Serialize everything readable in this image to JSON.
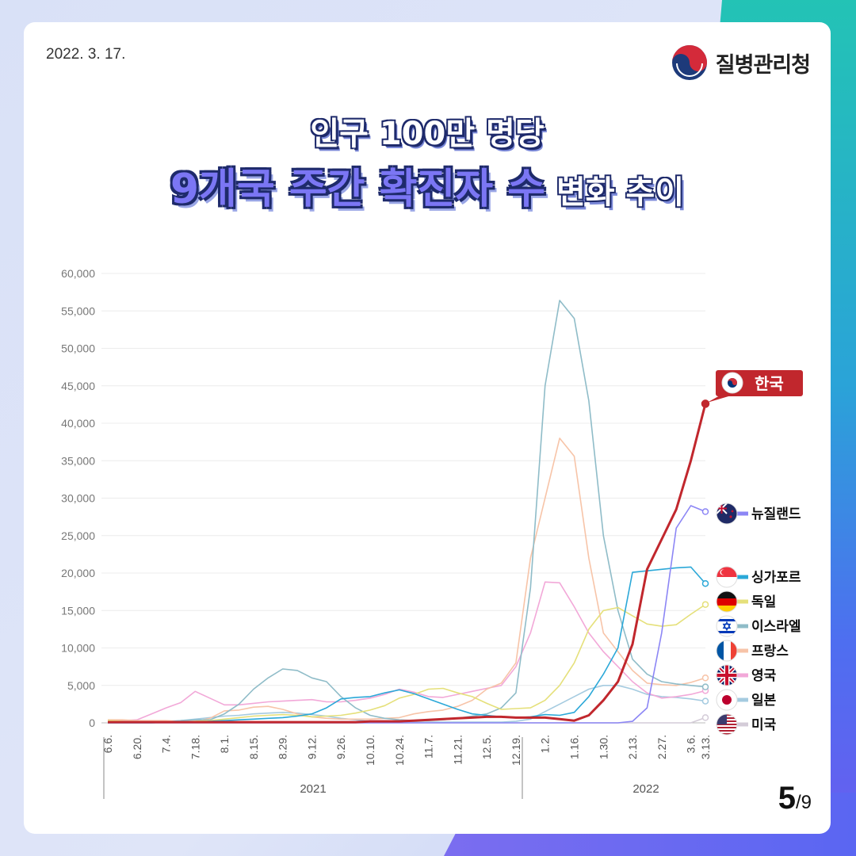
{
  "header": {
    "date": "2022. 3. 17.",
    "org_name": "질병관리청",
    "title_line1": "인구 100만 명당",
    "title_line2_big": "9개국 주간 확진자 수",
    "title_line2_small": " 변화 추이"
  },
  "page": {
    "current": "5",
    "total": "/9"
  },
  "colors": {
    "korea": "#c1272d",
    "new_zealand": "#8c86f5",
    "singapore": "#2ba8d8",
    "germany": "#e5e07a",
    "israel": "#8fbcc8",
    "france": "#f7c4a8",
    "uk": "#f2a8d8",
    "japan": "#a5cbe0",
    "usa": "#d4ccd8"
  },
  "chart_data": {
    "type": "line",
    "ylim": [
      0,
      60000
    ],
    "yticks": [
      "0",
      "5,000",
      "10,000",
      "15,000",
      "20,000",
      "25,000",
      "30,000",
      "35,000",
      "40,000",
      "45,000",
      "50,000",
      "55,000",
      "60,000"
    ],
    "categories": [
      "6.6.",
      "",
      "6.20.",
      "",
      "7.4.",
      "",
      "7.18.",
      "",
      "8.1.",
      "",
      "8.15.",
      "",
      "8.29.",
      "",
      "9.12.",
      "",
      "9.26.",
      "",
      "10.10.",
      "",
      "10.24.",
      "",
      "11.7.",
      "",
      "11.21.",
      "",
      "12.5.",
      "",
      "12.19.",
      "",
      "1.2.",
      "",
      "1.16.",
      "",
      "1.30.",
      "",
      "2.13.",
      "",
      "2.27.",
      "",
      "3.6.",
      "3.13."
    ],
    "tick_labels": [
      "6.6.",
      "6.20.",
      "7.4.",
      "7.18.",
      "8.1.",
      "8.15.",
      "8.29.",
      "9.12.",
      "9.26.",
      "10.10.",
      "10.24.",
      "11.7.",
      "11.21.",
      "12.5.",
      "12.19.",
      "1.2.",
      "1.16.",
      "1.30.",
      "2.13.",
      "2.27.",
      "3.6.",
      "3.13."
    ],
    "year_labels": [
      "2021",
      "2022"
    ],
    "series": [
      {
        "name": "미국",
        "key": "usa",
        "values": [
          0,
          0,
          0,
          0,
          0,
          0,
          0,
          0,
          0,
          0,
          0,
          0,
          0,
          0,
          0,
          0,
          0,
          0,
          0,
          0,
          0,
          0,
          0,
          0,
          0,
          0,
          0,
          0,
          0,
          0,
          0,
          0,
          0,
          0,
          0,
          0,
          0,
          0,
          0,
          0,
          0,
          700
        ]
      },
      {
        "name": "일본",
        "key": "japan",
        "values": [
          200,
          200,
          200,
          200,
          200,
          300,
          500,
          700,
          900,
          1000,
          1200,
          1300,
          1400,
          1300,
          1100,
          900,
          600,
          400,
          200,
          100,
          100,
          100,
          100,
          100,
          100,
          100,
          100,
          100,
          200,
          500,
          1500,
          2500,
          3500,
          4500,
          5000,
          5000,
          4500,
          3800,
          3500,
          3400,
          3200,
          2900
        ]
      },
      {
        "name": "영국",
        "key": "uk",
        "values": [
          300,
          300,
          400,
          1200,
          2000,
          2700,
          4200,
          3300,
          2400,
          2400,
          2600,
          2800,
          2900,
          3000,
          3100,
          2800,
          2800,
          3000,
          3300,
          3800,
          4500,
          4100,
          3500,
          3400,
          3800,
          4200,
          4600,
          5000,
          7500,
          12000,
          18800,
          18700,
          15500,
          12000,
          9500,
          7500,
          5500,
          4000,
          3300,
          3500,
          3800,
          4300
        ]
      },
      {
        "name": "프랑스",
        "key": "france",
        "values": [
          400,
          400,
          300,
          300,
          300,
          200,
          200,
          600,
          1600,
          1700,
          2100,
          2200,
          1800,
          1200,
          800,
          600,
          500,
          500,
          500,
          600,
          700,
          1200,
          1500,
          1700,
          2200,
          3000,
          4500,
          5300,
          8000,
          22000,
          30000,
          38000,
          35600,
          22000,
          12000,
          9500,
          7000,
          5300,
          5100,
          5000,
          5400,
          6000
        ]
      },
      {
        "name": "이스라엘",
        "key": "israel",
        "values": [
          0,
          0,
          0,
          0,
          100,
          300,
          400,
          400,
          1200,
          2500,
          4500,
          6000,
          7200,
          7000,
          6000,
          5500,
          3500,
          2000,
          1000,
          600,
          400,
          300,
          300,
          400,
          600,
          900,
          1200,
          2000,
          4000,
          18000,
          45000,
          56400,
          54000,
          43000,
          25000,
          15000,
          8500,
          6500,
          5500,
          5200,
          5000,
          4800
        ]
      },
      {
        "name": "독일",
        "key": "germany",
        "values": [
          300,
          200,
          100,
          100,
          100,
          100,
          200,
          300,
          500,
          700,
          900,
          1000,
          1100,
          1000,
          800,
          900,
          1000,
          1300,
          1700,
          2300,
          3300,
          3800,
          4500,
          4600,
          4000,
          3500,
          2600,
          1800,
          1900,
          2000,
          3000,
          5000,
          8000,
          12500,
          15000,
          15400,
          14300,
          13200,
          12900,
          13100,
          14500,
          15800
        ]
      },
      {
        "name": "싱가포르",
        "key": "singapore",
        "values": [
          0,
          0,
          0,
          0,
          100,
          100,
          100,
          200,
          300,
          400,
          500,
          600,
          700,
          900,
          1200,
          2000,
          3200,
          3400,
          3500,
          4000,
          4400,
          3900,
          3200,
          2500,
          1800,
          1200,
          1000,
          800,
          700,
          800,
          1100,
          1000,
          1400,
          3500,
          6500,
          10000,
          20100,
          20300,
          20500,
          20700,
          20800,
          18600
        ]
      },
      {
        "name": "뉴질랜드",
        "key": "new_zealand",
        "values": [
          0,
          0,
          0,
          0,
          0,
          0,
          0,
          0,
          0,
          0,
          0,
          0,
          0,
          0,
          0,
          0,
          0,
          0,
          0,
          0,
          0,
          0,
          0,
          0,
          0,
          0,
          0,
          0,
          0,
          0,
          0,
          0,
          0,
          0,
          0,
          0,
          200,
          2000,
          12000,
          26000,
          29000,
          28200
        ]
      },
      {
        "name": "한국",
        "key": "korea",
        "values": [
          100,
          100,
          100,
          100,
          100,
          100,
          100,
          100,
          100,
          100,
          100,
          100,
          100,
          100,
          100,
          100,
          100,
          100,
          200,
          200,
          200,
          300,
          400,
          500,
          600,
          700,
          800,
          800,
          700,
          700,
          700,
          500,
          300,
          1000,
          3000,
          5500,
          10500,
          20500,
          24500,
          28500,
          35000,
          42600
        ]
      }
    ]
  }
}
